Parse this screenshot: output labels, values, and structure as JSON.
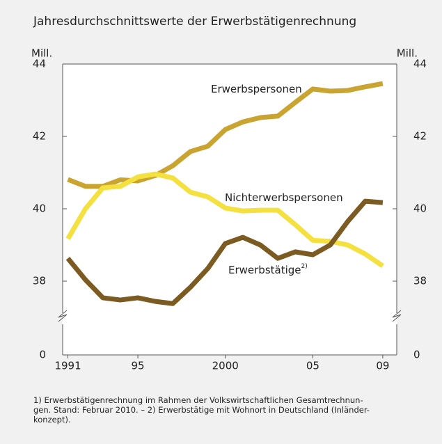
{
  "chart_data": {
    "type": "line",
    "title": "Jahresdurchschnittswerte der Erwerbstätigenrechnung",
    "y_unit": "Mill.",
    "x": [
      1991,
      1992,
      1993,
      1994,
      1995,
      1996,
      1997,
      1998,
      1999,
      2000,
      2001,
      2002,
      2003,
      2004,
      2005,
      2006,
      2007,
      2008,
      2009
    ],
    "xlim": [
      1990.7,
      2009.8
    ],
    "xticks": [
      {
        "value": 1991,
        "label": "1991"
      },
      {
        "value": 1995,
        "label": "95"
      },
      {
        "value": 2000,
        "label": "2000"
      },
      {
        "value": 2005,
        "label": "05"
      },
      {
        "value": 2009,
        "label": "09"
      }
    ],
    "ylim": [
      36,
      44
    ],
    "yticks": [
      0,
      38,
      40,
      42,
      44
    ],
    "y_break": true,
    "series": [
      {
        "name": "Erwerbspersonen",
        "color": "#c9a431",
        "values": [
          40.81,
          40.62,
          40.62,
          40.8,
          40.77,
          40.92,
          41.19,
          41.58,
          41.73,
          42.19,
          42.4,
          42.52,
          42.56,
          42.94,
          43.31,
          43.25,
          43.27,
          43.37,
          43.46
        ]
      },
      {
        "name": "Nichterwerbspersonen",
        "color": "#f4e03e",
        "values": [
          39.17,
          40.0,
          40.58,
          40.62,
          40.88,
          40.96,
          40.85,
          40.46,
          40.33,
          40.02,
          39.94,
          39.96,
          39.96,
          39.56,
          39.13,
          39.1,
          39.0,
          38.75,
          38.42
        ]
      },
      {
        "name": "Erwerbstätige",
        "name_note": "2)",
        "color": "#7b5b22",
        "values": [
          38.63,
          38.04,
          37.54,
          37.48,
          37.54,
          37.44,
          37.38,
          37.83,
          38.35,
          39.04,
          39.21,
          39.0,
          38.63,
          38.81,
          38.73,
          39.0,
          39.65,
          40.21,
          40.17
        ]
      }
    ],
    "footnote": [
      "1) Erwerbstätigenrechnung im Rahmen der Volkswirtschaftlichen Gesamtrechnun-",
      "gen. Stand: Februar 2010. – 2) Erwerbstätige mit Wohnort in Deutschland (Inländer-",
      "konzept)."
    ]
  }
}
